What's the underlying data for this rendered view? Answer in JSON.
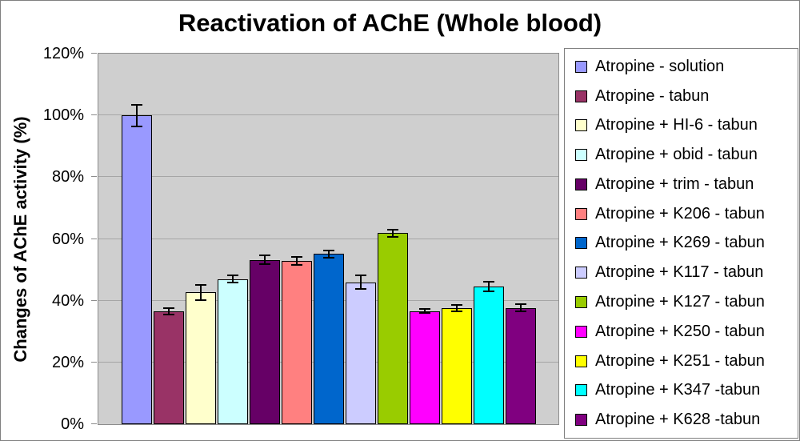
{
  "chart_data": {
    "type": "bar",
    "title": "Reactivation of AChE (Whole blood)",
    "xlabel": "",
    "ylabel": "Changes of AChE activity (%)",
    "ylim": [
      0,
      120
    ],
    "ytick_values": [
      0,
      20,
      40,
      60,
      80,
      100,
      120
    ],
    "ytick_labels": [
      "0%",
      "20%",
      "40%",
      "60%",
      "80%",
      "100%",
      "120%"
    ],
    "grid": true,
    "legend_position": "right",
    "error_bars": true,
    "series": [
      {
        "name": "Atropine - solution",
        "color": "#9999FF",
        "value": 100.0,
        "error": 3.5
      },
      {
        "name": "Atropine - tabun",
        "color": "#993366",
        "value": 36.6,
        "error": 1.1
      },
      {
        "name": "Atropine + HI-6 - tabun",
        "color": "#FFFFCC",
        "value": 42.7,
        "error": 2.5
      },
      {
        "name": "Atropine + obid - tabun",
        "color": "#CCFFFF",
        "value": 47.0,
        "error": 1.2
      },
      {
        "name": "Atropine + trim - tabun",
        "color": "#660066",
        "value": 53.2,
        "error": 1.4
      },
      {
        "name": "Atropine + K206 - tabun",
        "color": "#FF8080",
        "value": 52.9,
        "error": 1.4
      },
      {
        "name": "Atropine + K269 - tabun",
        "color": "#0066CC",
        "value": 55.1,
        "error": 1.2
      },
      {
        "name": "Atropine + K117 - tabun",
        "color": "#CCCCFF",
        "value": 46.0,
        "error": 2.3
      },
      {
        "name": "Atropine + K127 - tabun",
        "color": "#99CC00",
        "value": 61.9,
        "error": 1.2
      },
      {
        "name": "Atropine + K250 - tabun",
        "color": "#FF00FF",
        "value": 36.6,
        "error": 0.6
      },
      {
        "name": "Atropine + K251 - tabun",
        "color": "#FFFF00",
        "value": 37.6,
        "error": 1.0
      },
      {
        "name": "Atropine + K347 -tabun",
        "color": "#00FFFF",
        "value": 44.6,
        "error": 1.6
      },
      {
        "name": "Atropine + K628 -tabun",
        "color": "#800080",
        "value": 37.7,
        "error": 1.2
      }
    ],
    "colors": {
      "plot_background": "#CFCFCF",
      "gridline": "#A6A6A6",
      "plot_border": "#8C8C8C",
      "bar_border": "#000000",
      "error_bar": "#000000",
      "frame_border": "#808080"
    }
  }
}
